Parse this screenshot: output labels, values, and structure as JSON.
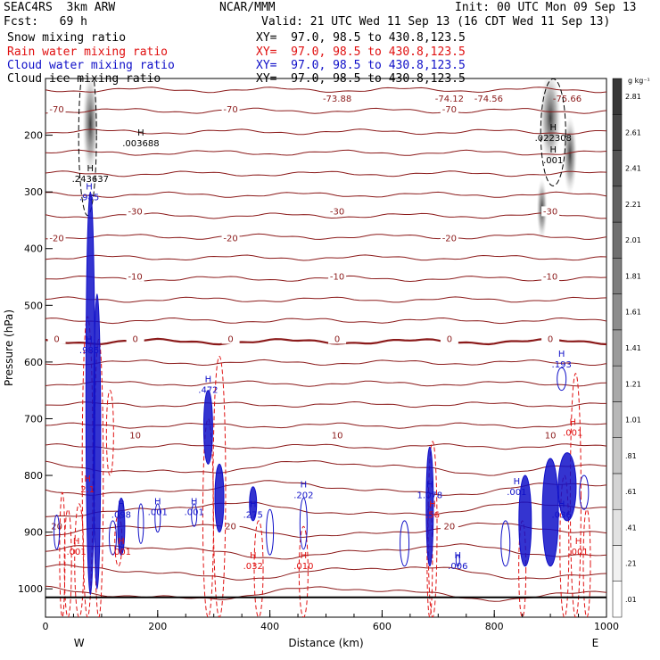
{
  "header": {
    "line1_left": "SEAC4RS  3km ARW",
    "line1_mid": "NCAR/MMM",
    "line1_right": "Init: 00 UTC Mon 09 Sep 13",
    "line2_left": "Fcst:   69 h",
    "line2_right": "Valid: 21 UTC Wed 11 Sep 13 (16 CDT Wed 11 Sep 13)",
    "fields": [
      {
        "name": "Snow mixing ratio",
        "xy": "XY=  97.0, 98.5 to 430.8,123.5",
        "color": "#000000"
      },
      {
        "name": "Rain water mixing ratio",
        "xy": "XY=  97.0, 98.5 to 430.8,123.5",
        "color": "#e01010"
      },
      {
        "name": "Cloud water mixing ratio",
        "xy": "XY=  97.0, 98.5 to 430.8,123.5",
        "color": "#1010c8"
      },
      {
        "name": "Cloud ice mixing ratio",
        "xy": "XY=  97.0, 98.5 to 430.8,123.5",
        "color": "#000000"
      }
    ]
  },
  "chart_data": {
    "type": "contour cross-section",
    "xlabel": "Distance (km)",
    "ylabel": "Pressure (hPa)",
    "xlim": [
      0,
      1000
    ],
    "ylim": [
      1050,
      100
    ],
    "x_ticks": [
      0,
      200,
      400,
      600,
      800,
      1000
    ],
    "y_ticks": [
      200,
      300,
      400,
      500,
      600,
      700,
      800,
      900,
      1000
    ],
    "x_end_labels": {
      "left": "W",
      "right": "E"
    },
    "colorbar": {
      "unit": "g kg⁻¹",
      "labels": [
        ".01",
        ".21",
        ".41",
        ".61",
        ".81",
        "1.01",
        "1.21",
        "1.41",
        "1.61",
        "1.81",
        "2.01",
        "2.21",
        "2.41",
        "2.61",
        "2.81"
      ]
    },
    "temperature_contours": [
      {
        "value": -70,
        "label": "-70",
        "p": 155
      },
      {
        "value": -30,
        "label": "-30",
        "p": 335
      },
      {
        "value": -20,
        "label": "-20",
        "p": 382
      },
      {
        "value": -10,
        "label": "-10",
        "p": 450
      },
      {
        "value": 0,
        "label": "0",
        "p": 560
      },
      {
        "value": 10,
        "label": "10",
        "p": 730
      },
      {
        "value": 20,
        "label": "20",
        "p": 890
      }
    ],
    "top_temperature_labels": [
      "-73.88",
      "-74.12",
      "-74.56",
      "-75.66"
    ],
    "snow_maxima": [
      {
        "x": 170,
        "p": 215,
        "label": ".003688"
      },
      {
        "x": 905,
        "p": 205,
        "label": ".022308"
      }
    ],
    "ice_maxima": [
      {
        "x": 80,
        "p": 278,
        "label": ".243637"
      },
      {
        "x": 905,
        "p": 245,
        "label": ".001"
      }
    ],
    "cloud_water_maxima": [
      {
        "x": 78,
        "p": 310,
        "label": ".985"
      },
      {
        "x": 78,
        "p": 580,
        "label": ".985"
      },
      {
        "x": 290,
        "p": 650,
        "label": ".472"
      },
      {
        "x": 135,
        "p": 870,
        "label": ".098"
      },
      {
        "x": 200,
        "p": 865,
        "label": ".001"
      },
      {
        "x": 265,
        "p": 865,
        "label": ".001"
      },
      {
        "x": 370,
        "p": 870,
        "label": ".275"
      },
      {
        "x": 460,
        "p": 835,
        "label": ".202"
      },
      {
        "x": 685,
        "p": 835,
        "label": "1.078"
      },
      {
        "x": 840,
        "p": 830,
        "label": ".001"
      },
      {
        "x": 920,
        "p": 870,
        "label": ".036"
      },
      {
        "x": 920,
        "p": 605,
        "label": ".193"
      },
      {
        "x": 735,
        "p": 960,
        "label": ".006"
      }
    ],
    "rain_maxima": [
      {
        "x": 75,
        "p": 825,
        "label": "2.1"
      },
      {
        "x": 55,
        "p": 935,
        "label": ".001"
      },
      {
        "x": 135,
        "p": 935,
        "label": ".001"
      },
      {
        "x": 370,
        "p": 960,
        "label": ".032"
      },
      {
        "x": 460,
        "p": 960,
        "label": ".010"
      },
      {
        "x": 690,
        "p": 870,
        "label": ".56"
      },
      {
        "x": 950,
        "p": 935,
        "label": ".001"
      },
      {
        "x": 940,
        "p": 725,
        "label": ".001"
      }
    ]
  }
}
